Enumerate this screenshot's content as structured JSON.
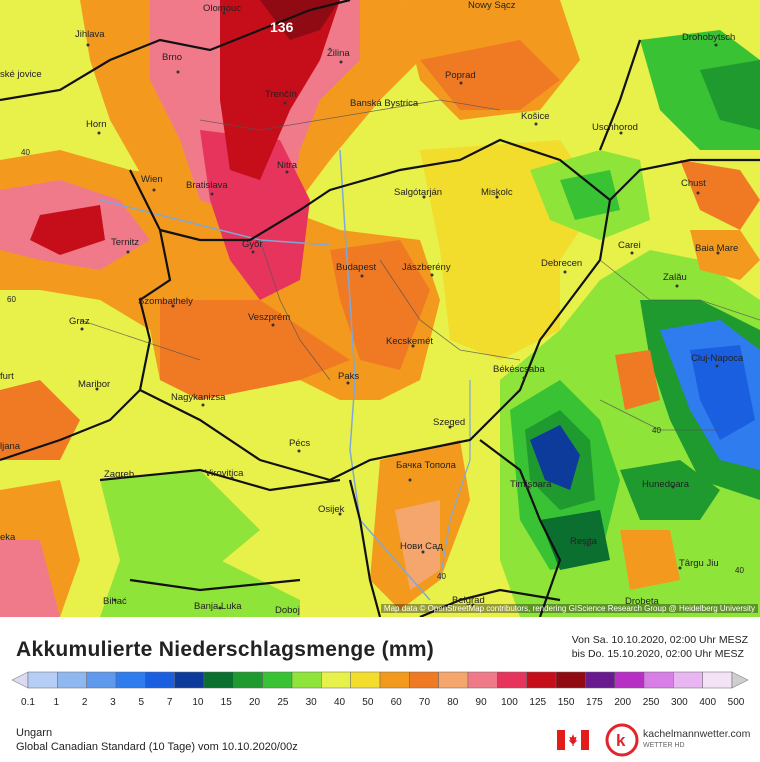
{
  "map": {
    "max_value_label": "136",
    "attribution": "Map data © OpenStreetMap contributors, rendering GIScience Research Group @ Heidelberg University",
    "cities": [
      {
        "name": "Olomouc"
      },
      {
        "name": "Nowy Sącz"
      },
      {
        "name": "Jihlava"
      },
      {
        "name": "Drohobytsch"
      },
      {
        "name": "Brno"
      },
      {
        "name": "Žilina"
      },
      {
        "name": "Poprad"
      },
      {
        "name": "Trenčín"
      },
      {
        "name": "Banská Bystrica"
      },
      {
        "name": "Košice"
      },
      {
        "name": "Horn"
      },
      {
        "name": "Uschhorod"
      },
      {
        "name": "Nitra"
      },
      {
        "name": "Chust"
      },
      {
        "name": "Wien"
      },
      {
        "name": "Bratislava"
      },
      {
        "name": "Salgótarján"
      },
      {
        "name": "Miskolc"
      },
      {
        "name": "Ternitz"
      },
      {
        "name": "Győr"
      },
      {
        "name": "Carei"
      },
      {
        "name": "Baia Mare"
      },
      {
        "name": "Budapest"
      },
      {
        "name": "Jászberény"
      },
      {
        "name": "Debrecen"
      },
      {
        "name": "Szombathely"
      },
      {
        "name": "Zalău"
      },
      {
        "name": "Graz"
      },
      {
        "name": "Veszprém"
      },
      {
        "name": "Kecskemét"
      },
      {
        "name": "Cluj-Napoca"
      },
      {
        "name": "Paks"
      },
      {
        "name": "Békéscsaba"
      },
      {
        "name": "Maribor"
      },
      {
        "name": "Nagykanizsa"
      },
      {
        "name": "Szeged"
      },
      {
        "name": "Pécs"
      },
      {
        "name": "Zagreb"
      },
      {
        "name": "Virovitica"
      },
      {
        "name": "Бачка Топола"
      },
      {
        "name": "Timișoara"
      },
      {
        "name": "Hunedoara"
      },
      {
        "name": "Osijek"
      },
      {
        "name": "Reșița"
      },
      {
        "name": "Нови Сад"
      },
      {
        "name": "Târgu Jiu"
      },
      {
        "name": "Bihać"
      },
      {
        "name": "Banja Luka"
      },
      {
        "name": "Doboj"
      },
      {
        "name": "Belgrad"
      },
      {
        "name": "Drobeta"
      },
      {
        "name": "furt"
      },
      {
        "name": "ljana"
      },
      {
        "name": "eka"
      },
      {
        "name": "ské jovice"
      }
    ],
    "contour_values": [
      "40",
      "40",
      "60",
      "40",
      "40"
    ]
  },
  "footer": {
    "title": "Akkumulierte Niederschlagsmenge (mm)",
    "period_from": "Von Sa. 10.10.2020, 02:00 Uhr MESZ",
    "period_to": "bis Do. 15.10.2020, 02:00 Uhr MESZ",
    "region": "Ungarn",
    "model": "Global Canadian Standard (10 Tage) vom 10.10.2020/00z",
    "brand": "kachelmannwetter.com",
    "brand_sub": "WETTER HD"
  },
  "legend": {
    "labels": [
      "0.1",
      "1",
      "2",
      "3",
      "5",
      "7",
      "10",
      "15",
      "20",
      "25",
      "30",
      "40",
      "50",
      "60",
      "70",
      "80",
      "90",
      "100",
      "125",
      "150",
      "175",
      "200",
      "250",
      "300",
      "400",
      "500"
    ],
    "colors": [
      "#dcd9f2",
      "#b6cdf5",
      "#8fb8f0",
      "#5e99ee",
      "#2f7cef",
      "#1a5fe0",
      "#0d3b9c",
      "#0a6f2f",
      "#1f9a2e",
      "#39c233",
      "#8fe43a",
      "#e8f04a",
      "#f2dd2c",
      "#f39a1e",
      "#f07a24",
      "#f4a66c",
      "#f07a8a",
      "#e6345d",
      "#c60d1a",
      "#8f0a12",
      "#6a1a8f",
      "#b82fc6",
      "#d77fe6",
      "#e8b6f0",
      "#f4e2f7",
      "#cfcfcf"
    ]
  }
}
